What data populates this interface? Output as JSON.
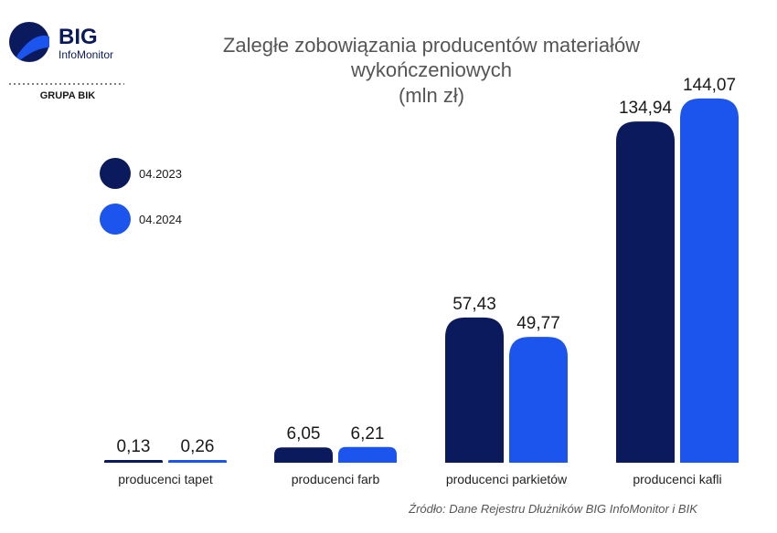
{
  "logo": {
    "brand": "BIG",
    "sub": "InfoMonitor",
    "group": "GRUPA BIK"
  },
  "source": "Źródło: Dane Rejestru Dłużników BIG InfoMonitor i BIK",
  "colors": {
    "series_2023": "#0b1a5c",
    "series_2024": "#1b55ee"
  },
  "chart_data": {
    "type": "bar",
    "title": [
      "Zaległe zobowiązania producentów materiałów",
      "wykończeniowych",
      "(mln zł)"
    ],
    "categories": [
      "producenci tapet",
      "producenci farb",
      "producenci parkietów",
      "producenci kafli"
    ],
    "series": [
      {
        "name": "04.2023",
        "values": [
          0.13,
          6.05,
          57.43,
          134.94
        ],
        "labels": [
          "0,13",
          "6,05",
          "57,43",
          "134,94"
        ]
      },
      {
        "name": "04.2024",
        "values": [
          0.26,
          6.21,
          49.77,
          144.07
        ],
        "labels": [
          "0,26",
          "6,21",
          "49,77",
          "144,07"
        ]
      }
    ],
    "legend": "left",
    "grid": false
  }
}
